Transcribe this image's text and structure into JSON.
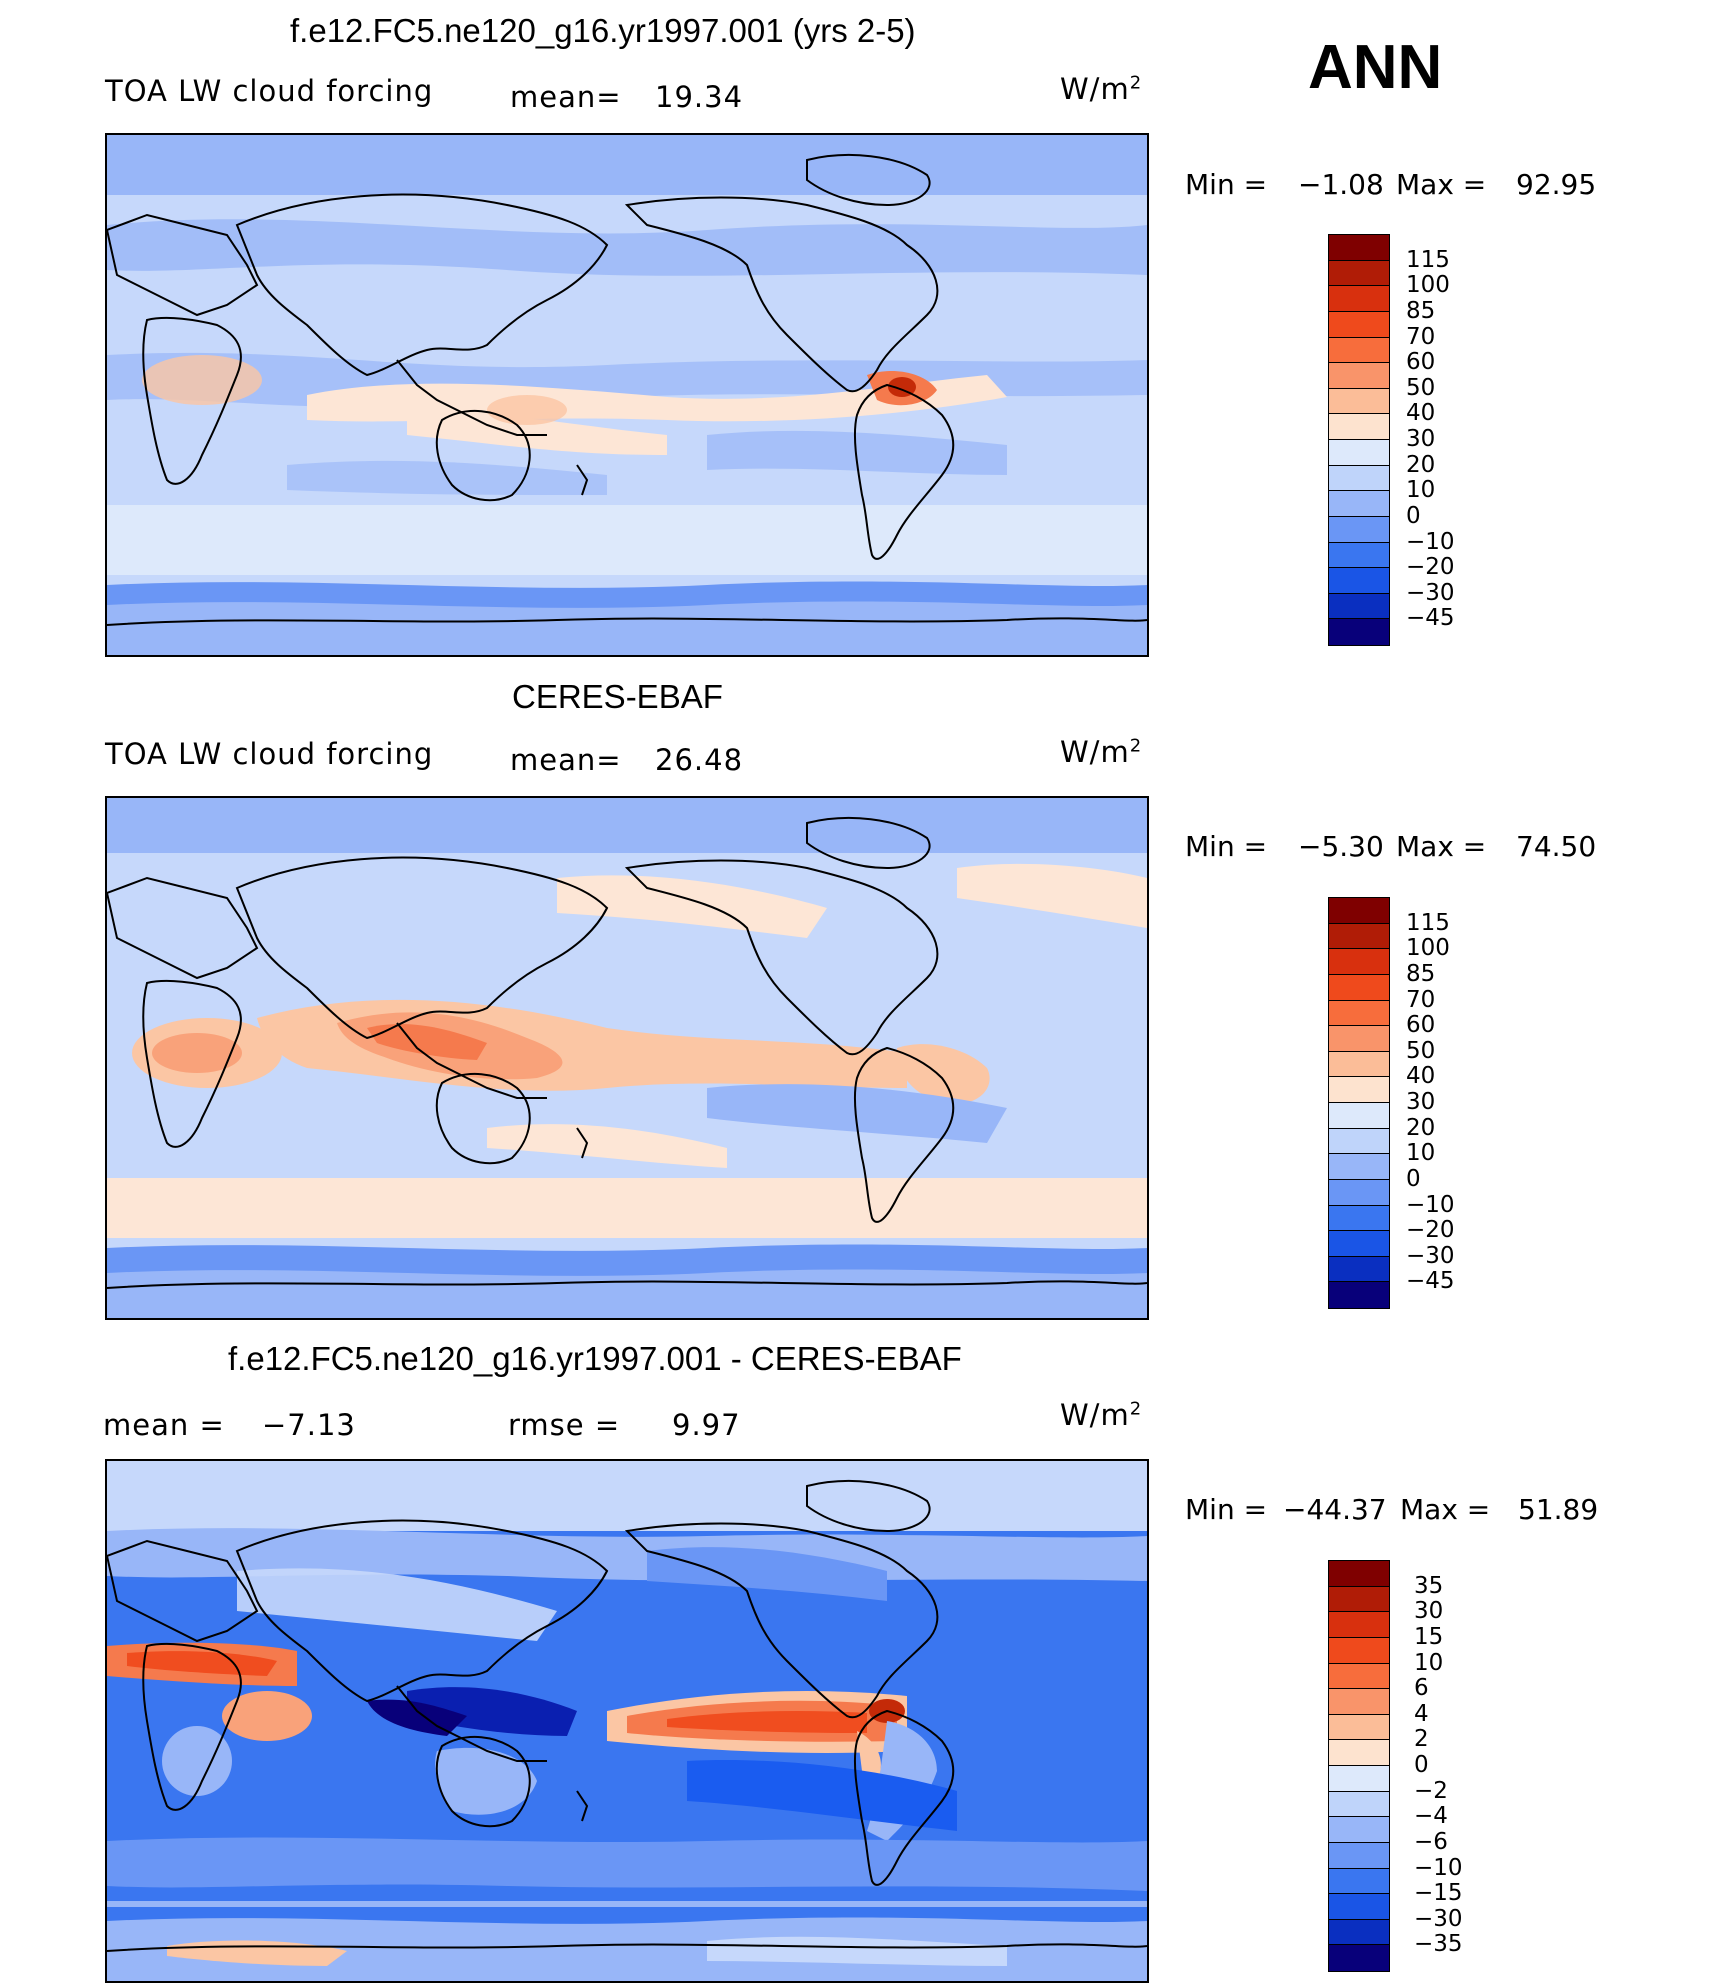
{
  "season_label": "ANN",
  "colors": {
    "scale": [
      "#08007a",
      "#0a1fb0",
      "#0f3fd8",
      "#1a5cf0",
      "#3a76f0",
      "#6a96f5",
      "#98b6f8",
      "#c6d8fb",
      "#e2ecfc",
      "#fde6d6",
      "#fbc6a4",
      "#f9a27a",
      "#f57a4d",
      "#f04d1f",
      "#c42a08",
      "#7f0000"
    ],
    "land_outline": "#000000"
  },
  "panels": [
    {
      "title": "f.e12.FC5.ne120_g16.yr1997.001 (yrs 2-5)",
      "left_label": "TOA LW cloud forcing",
      "mid_label": "mean=",
      "mid_value": "19.34",
      "units_base": "W/m",
      "units_exp": "2",
      "min_label": "Min =",
      "min_value": "−1.08",
      "max_label": "Max =",
      "max_value": "92.95",
      "colorbar_labels": [
        "115",
        "100",
        "85",
        "70",
        "60",
        "50",
        "40",
        "30",
        "20",
        "10",
        "0",
        "−10",
        "−20",
        "−30",
        "−45"
      ],
      "colorbar_colors": [
        "#7f0000",
        "#b01c06",
        "#d8300e",
        "#ef4a1c",
        "#f76d3c",
        "#f9946a",
        "#fbbd98",
        "#fde3cf",
        "#dde9fb",
        "#bfd4fa",
        "#98b6f8",
        "#6a96f5",
        "#3a76f0",
        "#1a55e6",
        "#0a2fc0",
        "#08007a"
      ]
    },
    {
      "title": "CERES-EBAF",
      "left_label": "TOA LW cloud forcing",
      "mid_label": "mean=",
      "mid_value": "26.48",
      "units_base": "W/m",
      "units_exp": "2",
      "min_label": "Min =",
      "min_value": "−5.30",
      "max_label": "Max =",
      "max_value": "74.50",
      "colorbar_labels": [
        "115",
        "100",
        "85",
        "70",
        "60",
        "50",
        "40",
        "30",
        "20",
        "10",
        "0",
        "−10",
        "−20",
        "−30",
        "−45"
      ],
      "colorbar_colors": [
        "#7f0000",
        "#b01c06",
        "#d8300e",
        "#ef4a1c",
        "#f76d3c",
        "#f9946a",
        "#fbbd98",
        "#fde3cf",
        "#dde9fb",
        "#bfd4fa",
        "#98b6f8",
        "#6a96f5",
        "#3a76f0",
        "#1a55e6",
        "#0a2fc0",
        "#08007a"
      ]
    },
    {
      "title": "f.e12.FC5.ne120_g16.yr1997.001 - CERES-EBAF",
      "left_label": "mean =",
      "left_value": "−7.13",
      "mid_label": "rmse =",
      "mid_value": "9.97",
      "units_base": "W/m",
      "units_exp": "2",
      "min_label": "Min =",
      "min_value": "−44.37",
      "max_label": "Max =",
      "max_value": "51.89",
      "colorbar_labels": [
        "35",
        "30",
        "15",
        "10",
        "6",
        "4",
        "2",
        "0",
        "−2",
        "−4",
        "−6",
        "−10",
        "−15",
        "−30",
        "−35"
      ],
      "colorbar_colors": [
        "#7f0000",
        "#b01c06",
        "#d8300e",
        "#ef4a1c",
        "#f76d3c",
        "#f9946a",
        "#fbbd98",
        "#fde3cf",
        "#dde9fb",
        "#bfd4fa",
        "#98b6f8",
        "#6a96f5",
        "#3a76f0",
        "#1a55e6",
        "#0a2fc0",
        "#08007a"
      ]
    }
  ],
  "chart_data": [
    {
      "type": "heatmap",
      "title": "f.e12.FC5.ne120_g16.yr1997.001 (yrs 2-5)",
      "variable": "TOA LW cloud forcing",
      "units": "W/m2",
      "mean": 19.34,
      "min": -1.08,
      "max": 92.95,
      "contour_levels": [
        -45,
        -30,
        -20,
        -10,
        0,
        10,
        20,
        30,
        40,
        50,
        60,
        70,
        85,
        100,
        115
      ]
    },
    {
      "type": "heatmap",
      "title": "CERES-EBAF",
      "variable": "TOA LW cloud forcing",
      "units": "W/m2",
      "mean": 26.48,
      "min": -5.3,
      "max": 74.5,
      "contour_levels": [
        -45,
        -30,
        -20,
        -10,
        0,
        10,
        20,
        30,
        40,
        50,
        60,
        70,
        85,
        100,
        115
      ]
    },
    {
      "type": "heatmap",
      "title": "f.e12.FC5.ne120_g16.yr1997.001 - CERES-EBAF",
      "units": "W/m2",
      "mean": -7.13,
      "rmse": 9.97,
      "min": -44.37,
      "max": 51.89,
      "contour_levels": [
        -35,
        -30,
        -15,
        -10,
        -6,
        -4,
        -2,
        0,
        2,
        4,
        6,
        10,
        15,
        30,
        35
      ]
    }
  ]
}
